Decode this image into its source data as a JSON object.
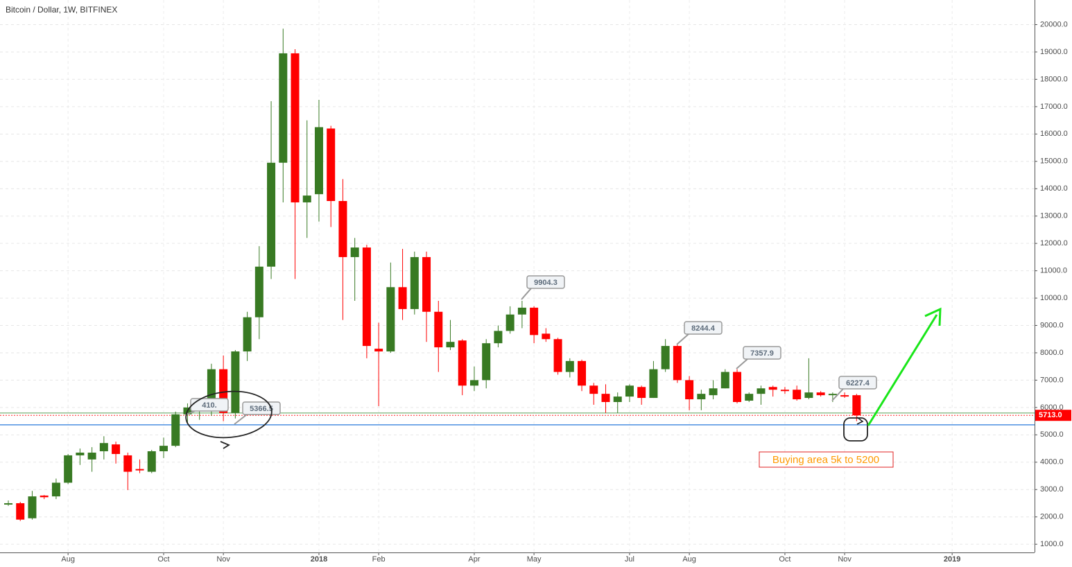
{
  "chart_data": {
    "type": "candlestick",
    "title": "Bitcoin / Dollar, 1W, BITFINEX",
    "categories": [
      null,
      null,
      null,
      null,
      null,
      "Aug",
      null,
      null,
      null,
      null,
      null,
      null,
      null,
      "Oct",
      null,
      null,
      null,
      null,
      "Nov",
      null,
      null,
      null,
      null,
      null,
      null,
      null,
      "2018",
      null,
      null,
      null,
      null,
      "Feb",
      null,
      null,
      null,
      null,
      null,
      null,
      null,
      "Apr",
      null,
      null,
      null,
      null,
      "May",
      null,
      null,
      null,
      null,
      null,
      null,
      null,
      "Jul",
      null,
      null,
      null,
      null,
      "Aug",
      null,
      null,
      null,
      null,
      null,
      null,
      null,
      "Oct",
      null,
      null,
      null,
      null,
      "Nov",
      null,
      null,
      null,
      null,
      null,
      null,
      null,
      null,
      "2019",
      null,
      null,
      null,
      null,
      null,
      null
    ],
    "open": [
      2450,
      2500,
      1950,
      2780,
      2750,
      3250,
      4250,
      4100,
      4400,
      4650,
      4250,
      3750,
      3650,
      4400,
      4600,
      5750,
      5900,
      6100,
      7400,
      5800,
      8050,
      9300,
      11150,
      14950,
      18950,
      13500,
      13800,
      16200,
      13550,
      11500,
      11850,
      8150,
      8050,
      10400,
      9600,
      11500,
      9500,
      8200,
      8450,
      6800,
      7000,
      8350,
      8800,
      9400,
      9650,
      8700,
      8500,
      7300,
      7700,
      6800,
      6500,
      6200,
      6400,
      6750,
      6350,
      7400,
      8250,
      7000,
      6300,
      6450,
      6700,
      7300,
      6250,
      6500,
      6750,
      6650,
      6650,
      6350,
      6550,
      6450,
      6450,
      6450,
      null,
      null,
      null,
      null,
      null,
      null,
      null,
      null,
      null,
      null,
      null,
      null,
      null,
      null
    ],
    "high": [
      2600,
      2550,
      2950,
      2800,
      3400,
      4300,
      4500,
      4550,
      4950,
      4750,
      4350,
      4100,
      4450,
      4900,
      5850,
      6150,
      6250,
      7600,
      7900,
      8100,
      9500,
      11900,
      17200,
      19850,
      19100,
      16500,
      17250,
      16300,
      14350,
      12200,
      11950,
      9100,
      11300,
      11800,
      11700,
      11700,
      9900,
      9200,
      8500,
      7500,
      8500,
      9000,
      9700,
      9900,
      9700,
      8900,
      8550,
      7800,
      7750,
      6900,
      6850,
      6550,
      6850,
      6800,
      7700,
      8500,
      8300,
      7150,
      6650,
      7000,
      7400,
      7400,
      6550,
      6800,
      6800,
      6750,
      6800,
      7800,
      6600,
      6550,
      6550,
      6500,
      null,
      null,
      null,
      null,
      null,
      null,
      null,
      null,
      null,
      null,
      null,
      null,
      null,
      null
    ],
    "low": [
      2400,
      1850,
      1900,
      2650,
      2650,
      3200,
      3900,
      3650,
      4100,
      3950,
      2980,
      3600,
      3600,
      4150,
      4550,
      5400,
      5550,
      5700,
      5500,
      5600,
      7700,
      8500,
      10700,
      13500,
      10700,
      12200,
      12800,
      12600,
      9200,
      9900,
      7800,
      6050,
      8000,
      9200,
      9400,
      8400,
      7300,
      8100,
      6450,
      6600,
      6700,
      8200,
      8700,
      8900,
      8350,
      8400,
      7200,
      7100,
      6600,
      6100,
      5800,
      5800,
      6200,
      6100,
      6350,
      7300,
      6900,
      5900,
      5900,
      6300,
      6700,
      6150,
      6200,
      6100,
      6400,
      6500,
      6250,
      6300,
      6400,
      6200,
      6350,
      5500,
      null,
      null,
      null,
      null,
      null,
      null,
      null,
      null,
      null,
      null,
      null,
      null,
      null,
      null
    ],
    "close": [
      2500,
      1900,
      2750,
      2720,
      3250,
      4250,
      4350,
      4350,
      4700,
      4300,
      3650,
      3700,
      4400,
      4600,
      5750,
      6000,
      6150,
      7400,
      5800,
      8050,
      9300,
      11150,
      14950,
      18950,
      13500,
      13750,
      16250,
      13550,
      11500,
      11850,
      8250,
      8050,
      10400,
      9600,
      11500,
      9500,
      8200,
      8400,
      6800,
      7000,
      8350,
      8800,
      9400,
      9650,
      8650,
      8500,
      7300,
      7700,
      6800,
      6500,
      6200,
      6400,
      6800,
      6350,
      7400,
      8250,
      7000,
      6300,
      6500,
      6700,
      7300,
      6200,
      6500,
      6700,
      6650,
      6600,
      6300,
      6550,
      6450,
      6500,
      6400,
      5713,
      null,
      null,
      null,
      null,
      null,
      null,
      null,
      null,
      null,
      null,
      null,
      null,
      null,
      null
    ],
    "up_color": "#387a23",
    "down_color": "#ff0000",
    "ylim": [
      700,
      20900
    ],
    "yticks": [
      {
        "value": 1000,
        "label": "1000.0"
      },
      {
        "value": 2000,
        "label": "2000.0"
      },
      {
        "value": 3000,
        "label": "3000.0"
      },
      {
        "value": 4000,
        "label": "4000.0"
      },
      {
        "value": 5000,
        "label": "5000.0"
      },
      {
        "value": 6000,
        "label": "6000.0"
      },
      {
        "value": 7000,
        "label": "7000.0"
      },
      {
        "value": 8000,
        "label": "8000.0"
      },
      {
        "value": 9000,
        "label": "9000.0"
      },
      {
        "value": 10000,
        "label": "10000.0"
      },
      {
        "value": 11000,
        "label": "11000.0"
      },
      {
        "value": 12000,
        "label": "12000.0"
      },
      {
        "value": 13000,
        "label": "13000.0"
      },
      {
        "value": 14000,
        "label": "14000.0"
      },
      {
        "value": 15000,
        "label": "15000.0"
      },
      {
        "value": 16000,
        "label": "16000.0"
      },
      {
        "value": 17000,
        "label": "17000.0"
      },
      {
        "value": 18000,
        "label": "18000.0"
      },
      {
        "value": 19000,
        "label": "19000.0"
      },
      {
        "value": 20000,
        "label": "20000.0"
      }
    ],
    "grid": true,
    "price_label": {
      "value": 5713,
      "label": "5713.0",
      "color": "#ff0000"
    },
    "horizontal_lines": [
      {
        "value": 5366.5,
        "color": "#4a8fe0"
      },
      {
        "value": 5800,
        "color": "#8fc08f"
      }
    ],
    "annotations": [
      {
        "text": "410."
      },
      {
        "text": "5366.5"
      },
      {
        "text": "9904.3"
      },
      {
        "text": "8244.4"
      },
      {
        "text": "7357.9"
      },
      {
        "text": "6227.4"
      }
    ],
    "note": "Buying area 5k to 5200",
    "note_color": "#ff9900"
  }
}
